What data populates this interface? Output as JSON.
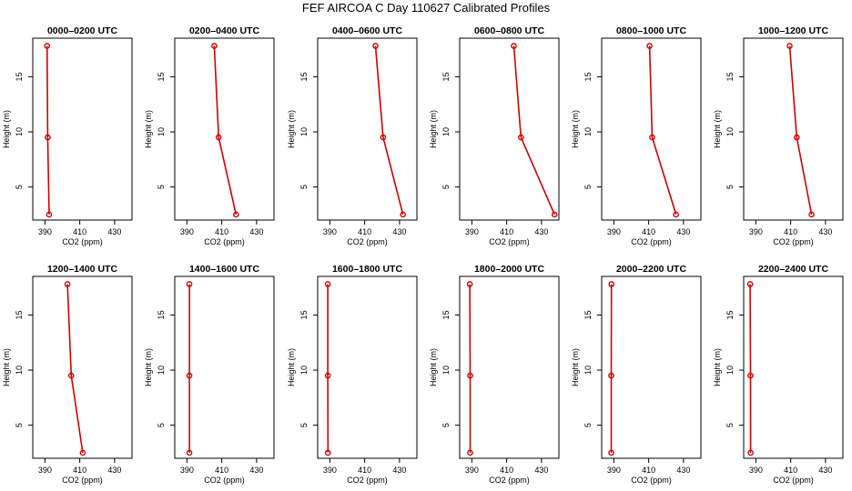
{
  "page": {
    "title": "FEF AIRCOA C  Day 110627  Calibrated Profiles",
    "series_color": "#d40000"
  },
  "chart_data": [
    {
      "type": "line",
      "title": "0000–0200 UTC",
      "xlabel": "CO2 (ppm)",
      "ylabel": "Height (m)",
      "xlim": [
        383,
        440
      ],
      "ylim": [
        2,
        18.5
      ],
      "xticks": [
        390,
        410,
        430
      ],
      "yticks": [
        5,
        10,
        15
      ],
      "points": [
        {
          "x": 391.2,
          "y": 17.8
        },
        {
          "x": 391.6,
          "y": 9.5
        },
        {
          "x": 392.4,
          "y": 2.5
        }
      ]
    },
    {
      "type": "line",
      "title": "0200–0400 UTC",
      "xlabel": "CO2 (ppm)",
      "ylabel": "Height (m)",
      "xlim": [
        383,
        440
      ],
      "ylim": [
        2,
        18.5
      ],
      "xticks": [
        390,
        410,
        430
      ],
      "yticks": [
        5,
        10,
        15
      ],
      "points": [
        {
          "x": 405.7,
          "y": 17.8
        },
        {
          "x": 408.2,
          "y": 9.5
        },
        {
          "x": 418.2,
          "y": 2.5
        }
      ]
    },
    {
      "type": "line",
      "title": "0400–0600 UTC",
      "xlabel": "CO2 (ppm)",
      "ylabel": "Height (m)",
      "xlim": [
        383,
        440
      ],
      "ylim": [
        2,
        18.5
      ],
      "xticks": [
        390,
        410,
        430
      ],
      "yticks": [
        5,
        10,
        15
      ],
      "points": [
        {
          "x": 416.2,
          "y": 17.8
        },
        {
          "x": 420.6,
          "y": 9.5
        },
        {
          "x": 432.0,
          "y": 2.5
        }
      ]
    },
    {
      "type": "line",
      "title": "0600–0800 UTC",
      "xlabel": "CO2 (ppm)",
      "ylabel": "Height (m)",
      "xlim": [
        383,
        440
      ],
      "ylim": [
        2,
        18.5
      ],
      "xticks": [
        390,
        410,
        430
      ],
      "yticks": [
        5,
        10,
        15
      ],
      "points": [
        {
          "x": 414.1,
          "y": 17.8
        },
        {
          "x": 418.2,
          "y": 9.5
        },
        {
          "x": 437.5,
          "y": 2.5
        }
      ]
    },
    {
      "type": "line",
      "title": "0800–1000 UTC",
      "xlabel": "CO2 (ppm)",
      "ylabel": "Height (m)",
      "xlim": [
        383,
        440
      ],
      "ylim": [
        2,
        18.5
      ],
      "xticks": [
        390,
        410,
        430
      ],
      "yticks": [
        5,
        10,
        15
      ],
      "points": [
        {
          "x": 410.5,
          "y": 17.8
        },
        {
          "x": 412.0,
          "y": 9.5
        },
        {
          "x": 425.7,
          "y": 2.5
        }
      ]
    },
    {
      "type": "line",
      "title": "1000–1200 UTC",
      "xlabel": "CO2 (ppm)",
      "ylabel": "Height (m)",
      "xlim": [
        383,
        440
      ],
      "ylim": [
        2,
        18.5
      ],
      "xticks": [
        390,
        410,
        430
      ],
      "yticks": [
        5,
        10,
        15
      ],
      "points": [
        {
          "x": 409.4,
          "y": 17.8
        },
        {
          "x": 413.5,
          "y": 9.5
        },
        {
          "x": 422.0,
          "y": 2.5
        }
      ]
    },
    {
      "type": "line",
      "title": "1200–1400 UTC",
      "xlabel": "CO2 (ppm)",
      "ylabel": "Height (m)",
      "xlim": [
        383,
        440
      ],
      "ylim": [
        2,
        18.5
      ],
      "xticks": [
        390,
        410,
        430
      ],
      "yticks": [
        5,
        10,
        15
      ],
      "points": [
        {
          "x": 402.9,
          "y": 17.8
        },
        {
          "x": 405.1,
          "y": 9.5
        },
        {
          "x": 411.7,
          "y": 2.5
        }
      ]
    },
    {
      "type": "line",
      "title": "1400–1600 UTC",
      "xlabel": "CO2 (ppm)",
      "ylabel": "Height (m)",
      "xlim": [
        383,
        440
      ],
      "ylim": [
        2,
        18.5
      ],
      "xticks": [
        390,
        410,
        430
      ],
      "yticks": [
        5,
        10,
        15
      ],
      "points": [
        {
          "x": 391.4,
          "y": 17.8
        },
        {
          "x": 391.4,
          "y": 9.5
        },
        {
          "x": 391.4,
          "y": 2.5
        }
      ]
    },
    {
      "type": "line",
      "title": "1600–1800 UTC",
      "xlabel": "CO2 (ppm)",
      "ylabel": "Height (m)",
      "xlim": [
        383,
        440
      ],
      "ylim": [
        2,
        18.5
      ],
      "xticks": [
        390,
        410,
        430
      ],
      "yticks": [
        5,
        10,
        15
      ],
      "points": [
        {
          "x": 388.8,
          "y": 17.8
        },
        {
          "x": 388.8,
          "y": 9.5
        },
        {
          "x": 388.9,
          "y": 2.5
        }
      ]
    },
    {
      "type": "line",
      "title": "1800–2000 UTC",
      "xlabel": "CO2 (ppm)",
      "ylabel": "Height (m)",
      "xlim": [
        383,
        440
      ],
      "ylim": [
        2,
        18.5
      ],
      "xticks": [
        390,
        410,
        430
      ],
      "yticks": [
        5,
        10,
        15
      ],
      "points": [
        {
          "x": 388.8,
          "y": 17.8
        },
        {
          "x": 389.0,
          "y": 9.5
        },
        {
          "x": 389.0,
          "y": 2.5
        }
      ]
    },
    {
      "type": "line",
      "title": "2000–2200 UTC",
      "xlabel": "CO2 (ppm)",
      "ylabel": "Height (m)",
      "xlim": [
        383,
        440
      ],
      "ylim": [
        2,
        18.5
      ],
      "xticks": [
        390,
        410,
        430
      ],
      "yticks": [
        5,
        10,
        15
      ],
      "points": [
        {
          "x": 388.6,
          "y": 17.8
        },
        {
          "x": 388.5,
          "y": 9.5
        },
        {
          "x": 388.5,
          "y": 2.5
        }
      ]
    },
    {
      "type": "line",
      "title": "2200–2400 UTC",
      "xlabel": "CO2 (ppm)",
      "ylabel": "Height (m)",
      "xlim": [
        383,
        440
      ],
      "ylim": [
        2,
        18.5
      ],
      "xticks": [
        390,
        410,
        430
      ],
      "yticks": [
        5,
        10,
        15
      ],
      "points": [
        {
          "x": 386.7,
          "y": 17.8
        },
        {
          "x": 386.9,
          "y": 9.5
        },
        {
          "x": 387.0,
          "y": 2.5
        }
      ]
    }
  ]
}
